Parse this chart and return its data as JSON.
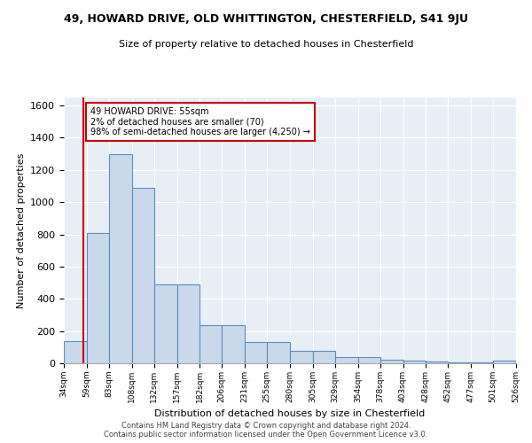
{
  "title": "49, HOWARD DRIVE, OLD WHITTINGTON, CHESTERFIELD, S41 9JU",
  "subtitle": "Size of property relative to detached houses in Chesterfield",
  "xlabel": "Distribution of detached houses by size in Chesterfield",
  "ylabel": "Number of detached properties",
  "footer_line1": "Contains HM Land Registry data © Crown copyright and database right 2024.",
  "footer_line2": "Contains public sector information licensed under the Open Government Licence v3.0.",
  "bin_edges": [
    34,
    59,
    83,
    108,
    132,
    157,
    182,
    206,
    231,
    255,
    280,
    305,
    329,
    354,
    378,
    403,
    428,
    452,
    477,
    501,
    526
  ],
  "bar_heights": [
    140,
    810,
    1300,
    1090,
    490,
    490,
    235,
    235,
    130,
    130,
    75,
    75,
    40,
    40,
    20,
    15,
    12,
    8,
    5,
    15
  ],
  "bar_color": "#c9d9eb",
  "bar_edge_color": "#5a8fc0",
  "property_line_x": 55,
  "property_line_color": "#cc0000",
  "annotation_text": "49 HOWARD DRIVE: 55sqm\n2% of detached houses are smaller (70)\n98% of semi-detached houses are larger (4,250) →",
  "annotation_box_edge": "#cc0000",
  "annotation_box_face": "#ffffff",
  "ylim": [
    0,
    1650
  ],
  "background_color": "#e8eef6",
  "tick_labels": [
    "34sqm",
    "59sqm",
    "83sqm",
    "108sqm",
    "132sqm",
    "157sqm",
    "182sqm",
    "206sqm",
    "231sqm",
    "255sqm",
    "280sqm",
    "305sqm",
    "329sqm",
    "354sqm",
    "378sqm",
    "403sqm",
    "428sqm",
    "452sqm",
    "477sqm",
    "501sqm",
    "526sqm"
  ]
}
